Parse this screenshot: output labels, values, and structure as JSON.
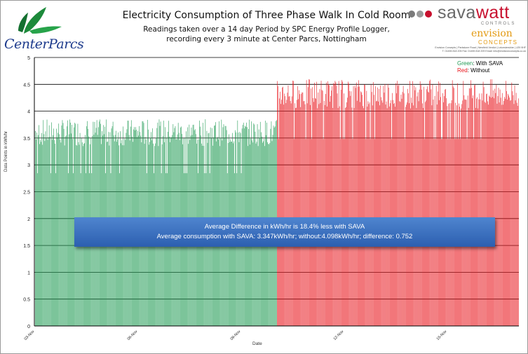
{
  "header": {
    "title": "Electricity Consumption of Three Phase Walk In Cold Room",
    "subtitle_line1": "Readings taken over a 14 day Period by SPC Energy Profile Logger,",
    "subtitle_line2": "recording every 3 minute at Center Parcs, Nottingham"
  },
  "logos": {
    "left_brand": "CenterParcs",
    "right_brand_main": "sava",
    "right_brand_accent": "watt",
    "right_brand_sub": "CONTROLS",
    "envision_main": "envision",
    "envision_sub": "CONCEPTS",
    "address_line1": "Envision Concepts | Parkstone Road | Newfield Verdict | Leicestershire | LE9 9HF",
    "address_line2": "T: 01455 818 205  Fax: 01455 818 209  Email: info@envisionconcepts.co.uk"
  },
  "annotation": {
    "line1": "Average Difference in kWh/hr is 18.4% less with SAVA",
    "line2": "Average consumption with SAVA: 3.347kWh/hr; without:4.098kWh/hr; difference: 0.752"
  },
  "legend": {
    "green_word": "Green",
    "green_rest": ": With SAVA",
    "red_word": "Red",
    "red_rest": ": Without"
  },
  "colors": {
    "with_sava": "#1f9a53",
    "without": "#e8141b",
    "annotation_bg": "#3b6fc0",
    "savawatt_red": "#c8102e"
  },
  "chart_data": {
    "type": "bar",
    "ylabel": "Data Points in kWh/hr",
    "xlabel": "Date",
    "ylim": [
      0,
      5
    ],
    "yticks": [
      "0",
      "0.5",
      "1",
      "1.5",
      "2",
      "2.5",
      "3",
      "3.5",
      "4",
      "4.5",
      "5"
    ],
    "xticks": [
      "03-Nov",
      "06-Nov",
      "09-Nov",
      "12-Nov",
      "15-Nov"
    ],
    "grid": true,
    "series": [
      {
        "name": "With SAVA",
        "color": "#1f9a53",
        "segment": "first half",
        "typical_peak": 3.6,
        "max": 3.85,
        "average": 3.347
      },
      {
        "name": "Without",
        "color": "#e8141b",
        "segment": "second half",
        "typical_peak": 4.3,
        "max": 4.6,
        "average": 4.098
      }
    ]
  }
}
